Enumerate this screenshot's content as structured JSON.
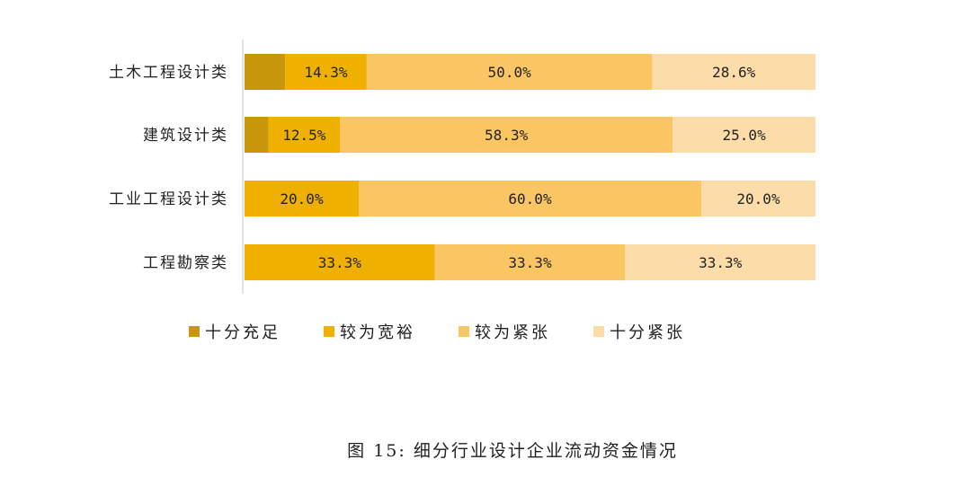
{
  "chart_data": {
    "type": "bar",
    "orientation": "horizontal",
    "stacked": "100%",
    "categories": [
      "土木工程设计类",
      "建筑设计类",
      "工业工程设计类",
      "工程勘察类"
    ],
    "series": [
      {
        "name": "十分充足",
        "color": "#C8960A",
        "values": [
          7.1,
          4.2,
          0,
          0
        ],
        "labels": [
          "",
          "",
          "",
          ""
        ]
      },
      {
        "name": "较为宽裕",
        "color": "#F0B000",
        "values": [
          14.3,
          12.5,
          20.0,
          33.3
        ],
        "labels": [
          "14.3%",
          "12.5%",
          "20.0%",
          "33.3%"
        ]
      },
      {
        "name": "较为紧张",
        "color": "#FAC663",
        "values": [
          50.0,
          58.3,
          60.0,
          33.3
        ],
        "labels": [
          "50.0%",
          "58.3%",
          "60.0%",
          "33.3%"
        ]
      },
      {
        "name": "十分紧张",
        "color": "#FCDDAA",
        "values": [
          28.6,
          25.0,
          20.0,
          33.3
        ],
        "labels": [
          "28.6%",
          "25.0%",
          "20.0%",
          "33.3%"
        ]
      }
    ],
    "xlim": [
      0,
      100
    ],
    "legend_position": "bottom",
    "grid": false
  },
  "caption": "图 15: 细分行业设计企业流动资金情况"
}
